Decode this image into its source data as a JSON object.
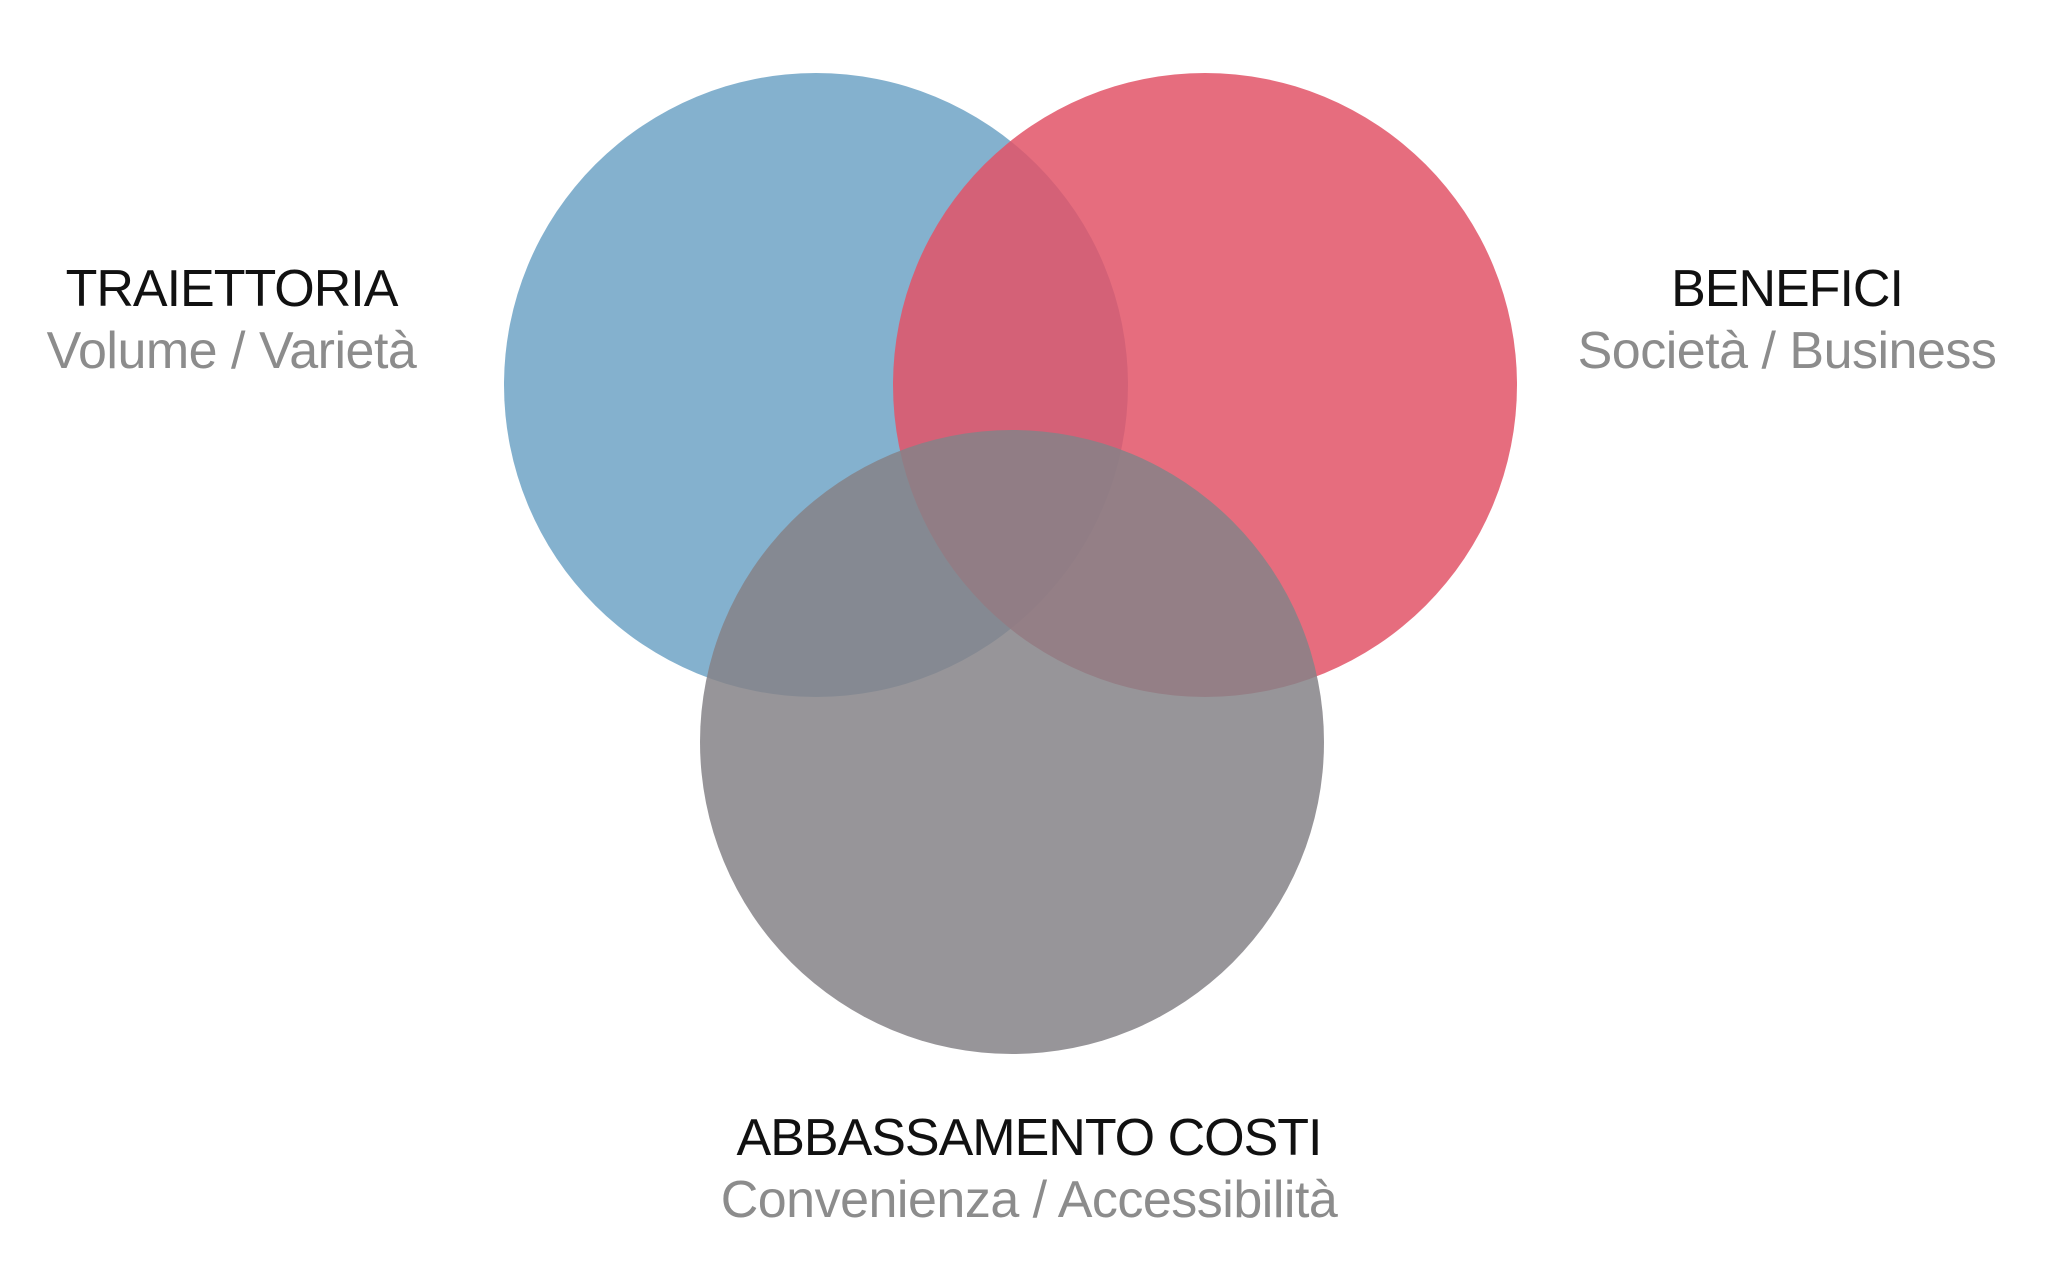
{
  "diagram": {
    "type": "venn",
    "circles": [
      {
        "id": "traiettoria",
        "title": "TRAIETTORIA",
        "subtitle": "Volume / Varietà",
        "color": "#6fa3c6"
      },
      {
        "id": "benefici",
        "title": "BENEFICI",
        "subtitle": "Società / Business",
        "color": "#e25467"
      },
      {
        "id": "abbassamento-costi",
        "title": "ABBASSAMENTO COSTI",
        "subtitle": "Convenienza / Accessibilità",
        "color": "#858387"
      }
    ],
    "colors": {
      "title_text": "#111111",
      "subtitle_text": "#8c8c8c",
      "background": "#ffffff"
    }
  }
}
